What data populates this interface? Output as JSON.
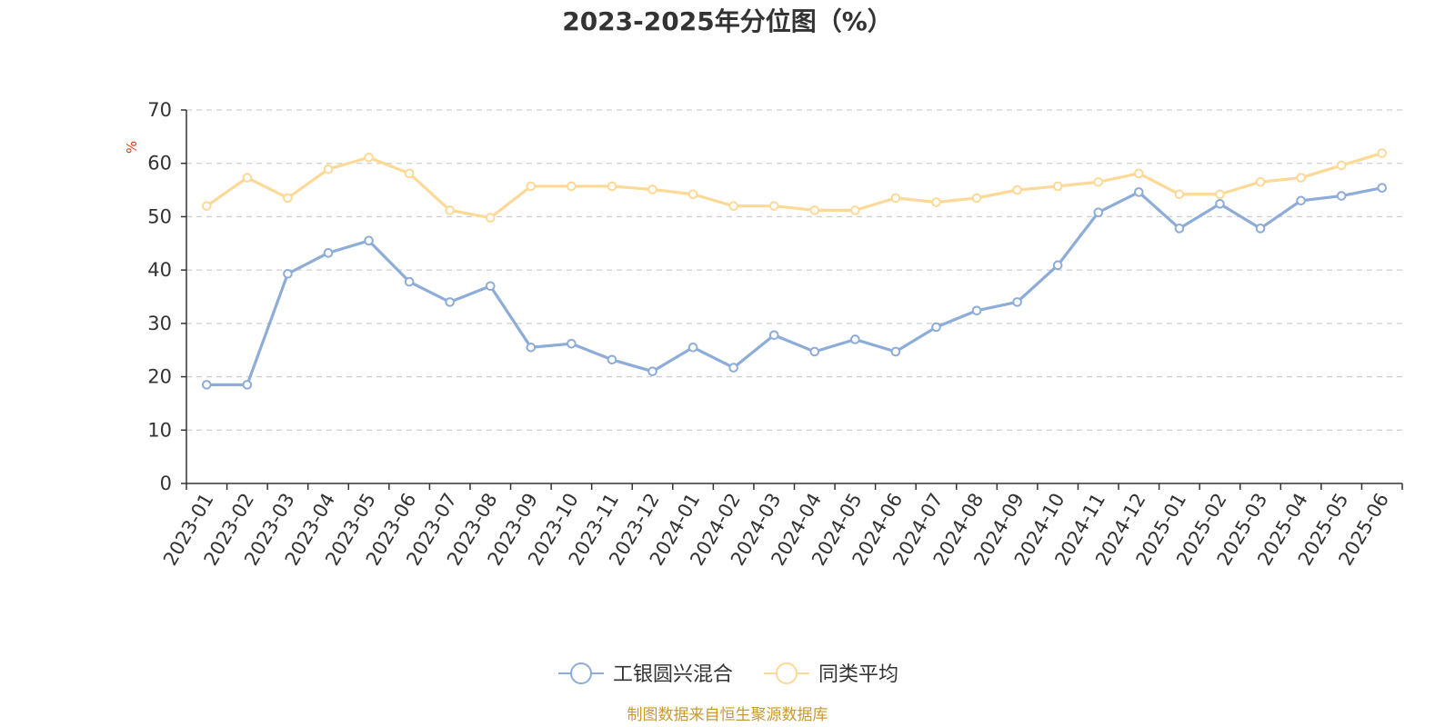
{
  "chart_data": {
    "type": "line",
    "title": "2023-2025年分位图（%）",
    "ylabel": "%",
    "ylim": [
      0,
      70
    ],
    "yticks": [
      0,
      10,
      20,
      30,
      40,
      50,
      60,
      70
    ],
    "grid": true,
    "legend_position": "bottom-center",
    "categories": [
      "2023-01",
      "2023-02",
      "2023-03",
      "2023-04",
      "2023-05",
      "2023-06",
      "2023-07",
      "2023-08",
      "2023-09",
      "2023-10",
      "2023-11",
      "2023-12",
      "2024-01",
      "2024-02",
      "2024-03",
      "2024-04",
      "2024-05",
      "2024-06",
      "2024-07",
      "2024-08",
      "2024-09",
      "2024-10",
      "2024-11",
      "2024-12",
      "2025-01",
      "2025-02",
      "2025-03",
      "2025-04",
      "2025-05",
      "2025-06"
    ],
    "series": [
      {
        "name": "工银圆兴混合",
        "color": "#8eacd8",
        "values": [
          18.5,
          18.5,
          39.3,
          43.2,
          45.5,
          37.8,
          34.0,
          37.0,
          25.5,
          26.2,
          23.2,
          21.0,
          25.5,
          21.7,
          27.8,
          24.7,
          27.0,
          24.7,
          29.3,
          32.4,
          34.0,
          40.9,
          50.8,
          54.6,
          47.8,
          52.4,
          47.8,
          53.0,
          53.9,
          55.4
        ]
      },
      {
        "name": "同类平均",
        "color": "#fcd997",
        "values": [
          52.0,
          57.3,
          53.5,
          58.9,
          61.1,
          58.1,
          51.2,
          49.8,
          55.7,
          55.7,
          55.7,
          55.1,
          54.2,
          52.0,
          52.0,
          51.2,
          51.2,
          53.5,
          52.7,
          53.5,
          55.0,
          55.7,
          56.5,
          58.1,
          54.2,
          54.2,
          56.5,
          57.3,
          59.6,
          61.9
        ]
      }
    ],
    "source": "制图数据来自恒生聚源数据库",
    "source_color": "#c89a2e",
    "unit_color": "#e8361e"
  }
}
